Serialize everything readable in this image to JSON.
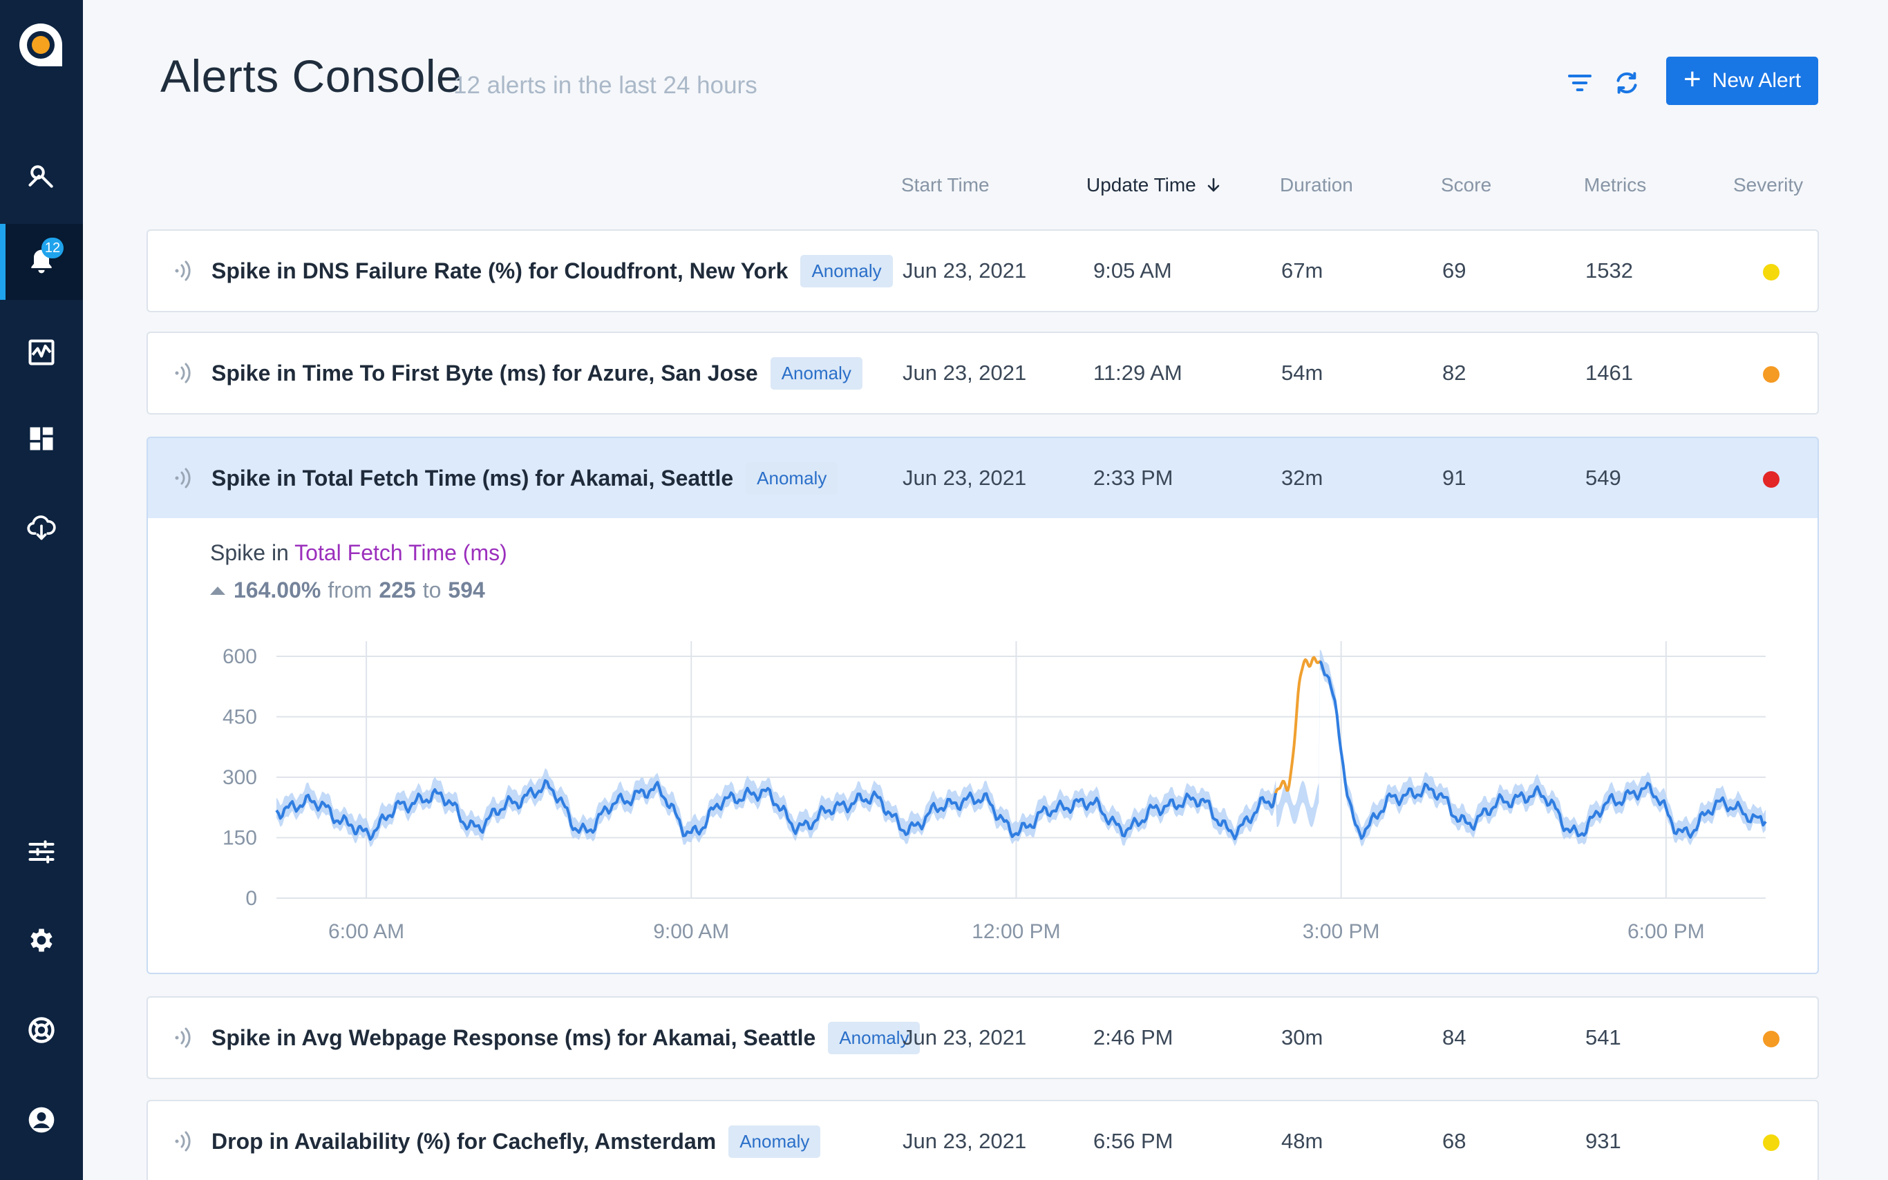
{
  "header": {
    "title": "Alerts Console",
    "subtitle": "12 alerts in the last 24 hours",
    "new_alert_label": "New Alert"
  },
  "sidebar": {
    "badge_count": "12",
    "items": [
      {
        "name": "explore",
        "icon": "search-tools-icon"
      },
      {
        "name": "alerts",
        "icon": "bell-icon",
        "active": true
      },
      {
        "name": "monitors",
        "icon": "pulse-chart-icon"
      },
      {
        "name": "dashboards",
        "icon": "dashboard-icon"
      },
      {
        "name": "integrations",
        "icon": "cloud-download-icon"
      },
      {
        "name": "tune",
        "icon": "sliders-icon"
      },
      {
        "name": "settings",
        "icon": "gear-icon"
      },
      {
        "name": "help",
        "icon": "lifebuoy-icon"
      },
      {
        "name": "profile",
        "icon": "user-icon"
      }
    ]
  },
  "columns": {
    "start_time": "Start Time",
    "update_time": "Update Time",
    "duration": "Duration",
    "score": "Score",
    "metrics": "Metrics",
    "severity": "Severity"
  },
  "alerts": [
    {
      "title": "Spike in DNS Failure Rate (%) for Cloudfront, New York",
      "tag": "Anomaly",
      "start": "Jun 23, 2021",
      "update": "9:05 AM",
      "duration": "67m",
      "score": "69",
      "metrics": "1532",
      "severity_color": "#f5d90a"
    },
    {
      "title": "Spike in Time To First Byte (ms) for Azure, San Jose",
      "tag": "Anomaly",
      "start": "Jun 23, 2021",
      "update": "11:29 AM",
      "duration": "54m",
      "score": "82",
      "metrics": "1461",
      "severity_color": "#f59a23"
    },
    {
      "title": "Spike in Total Fetch Time (ms) for Akamai, Seattle",
      "tag": "Anomaly",
      "start": "Jun 23, 2021",
      "update": "2:33 PM",
      "duration": "32m",
      "score": "91",
      "metrics": "549",
      "severity_color": "#e32626"
    },
    {
      "title": "Spike in Avg Webpage Response (ms) for Akamai, Seattle",
      "tag": "Anomaly",
      "start": "Jun 23, 2021",
      "update": "2:46 PM",
      "duration": "30m",
      "score": "84",
      "metrics": "541",
      "severity_color": "#f59a23"
    },
    {
      "title": "Drop in Availability (%) for Cachefly, Amsterdam",
      "tag": "Anomaly",
      "start": "Jun 23, 2021",
      "update": "6:56 PM",
      "duration": "48m",
      "score": "68",
      "metrics": "931",
      "severity_color": "#f5d90a"
    }
  ],
  "detail": {
    "prefix": "Spike in",
    "metric": "Total Fetch Time (ms)",
    "change": "164.00%",
    "from_word": "from",
    "from_value": "225",
    "to_word": "to",
    "to_value": "594"
  },
  "chart_data": {
    "type": "line",
    "x_ticks": [
      "6:00 AM",
      "9:00 AM",
      "12:00 PM",
      "3:00 PM",
      "6:00 PM"
    ],
    "x_tick_hours": [
      6,
      9,
      12,
      15,
      18
    ],
    "x_range_hours": [
      5.17,
      18.92
    ],
    "y_ticks": [
      0,
      150,
      300,
      450,
      600
    ],
    "ylim": [
      0,
      600
    ],
    "grid": true,
    "series_color": "#2f7de1",
    "band_color": "#b9d3f7",
    "anomaly_color": "#f0a030",
    "anomaly_range_hours": [
      14.4,
      14.8
    ],
    "series": [
      {
        "values_hours": [
          5.17,
          5.5,
          5.83,
          6.0,
          6.33,
          6.67,
          7.0,
          7.33,
          7.67,
          8.0,
          8.33,
          8.67,
          9.0,
          9.33,
          9.67,
          10.0,
          10.33,
          10.67,
          11.0,
          11.33,
          11.67,
          12.0,
          12.33,
          12.67,
          13.0,
          13.33,
          13.67,
          14.0,
          14.33,
          14.5,
          14.67,
          14.83,
          15.17,
          15.5,
          15.83,
          16.17,
          16.5,
          16.83,
          17.17,
          17.5,
          17.83,
          18.17,
          18.5,
          18.92
        ],
        "values": [
          215,
          240,
          185,
          160,
          230,
          255,
          175,
          235,
          275,
          165,
          240,
          270,
          160,
          245,
          262,
          175,
          225,
          250,
          170,
          230,
          248,
          165,
          220,
          238,
          170,
          225,
          245,
          165,
          240,
          282,
          594,
          575,
          165,
          250,
          268,
          185,
          240,
          258,
          160,
          240,
          270,
          160,
          235,
          190
        ]
      }
    ]
  }
}
